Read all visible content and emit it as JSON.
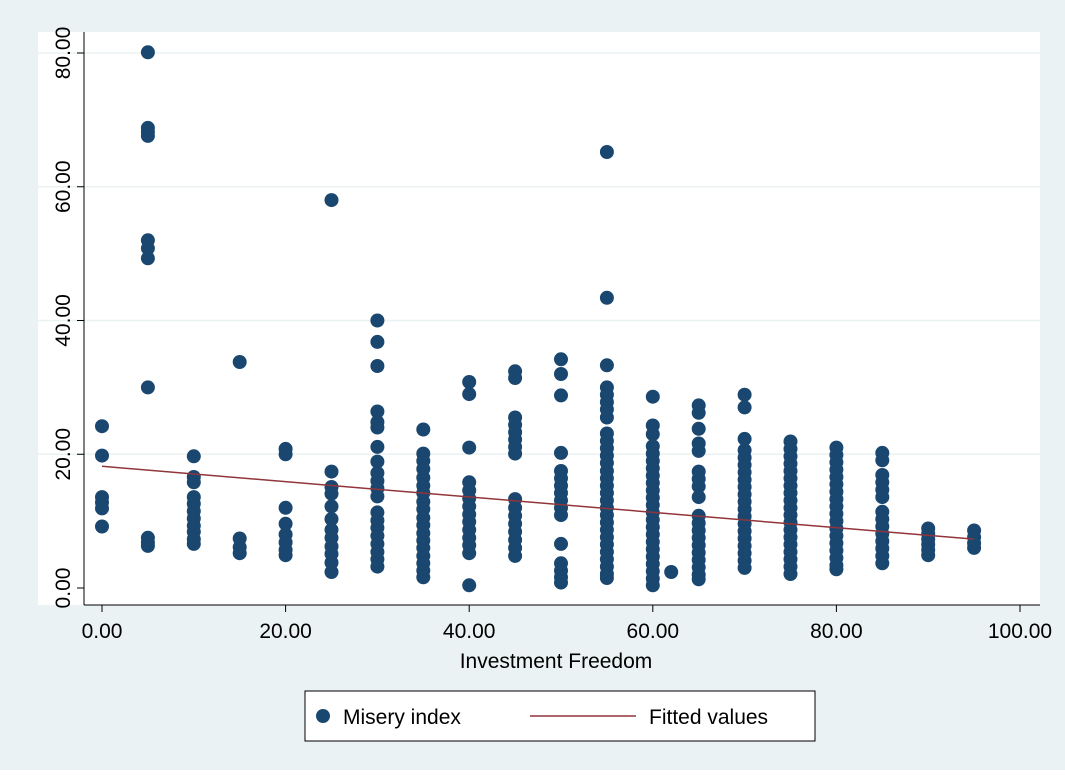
{
  "colors": {
    "graph_region": "#eaf2f3",
    "plot_region": "#ffffff",
    "gridline": "#eaf2f3",
    "axis": "#000000",
    "marker": "#1a476f",
    "fitted_line": "#90353b",
    "legend_border": "#000000"
  },
  "chart_data": {
    "type": "scatter",
    "title": "",
    "xlabel": "Investment Freedom",
    "ylabel": "",
    "xlim": [
      0,
      100
    ],
    "ylim": [
      0,
      80
    ],
    "xticks": [
      0,
      20,
      40,
      60,
      80,
      100
    ],
    "xtick_labels": [
      "0.00",
      "20.00",
      "40.00",
      "60.00",
      "80.00",
      "100.00"
    ],
    "yticks": [
      0,
      20,
      40,
      60,
      80
    ],
    "ytick_labels": [
      "0.00",
      "20.00",
      "40.00",
      "60.00",
      "80.00"
    ],
    "grid": "horizontal",
    "legend_position": "bottom",
    "series": [
      {
        "name": "Misery index",
        "type": "scatter",
        "points": [
          [
            0,
            24.2
          ],
          [
            0,
            19.8
          ],
          [
            0,
            13.6
          ],
          [
            0,
            12.8
          ],
          [
            0,
            11.9
          ],
          [
            0,
            9.2
          ],
          [
            5,
            80.1
          ],
          [
            5,
            68.8
          ],
          [
            5,
            68.2
          ],
          [
            5,
            67.6
          ],
          [
            5,
            52.0
          ],
          [
            5,
            50.8
          ],
          [
            5,
            49.3
          ],
          [
            5,
            30.0
          ],
          [
            5,
            7.5
          ],
          [
            5,
            6.8
          ],
          [
            5,
            6.3
          ],
          [
            10,
            19.7
          ],
          [
            10,
            16.6
          ],
          [
            10,
            15.8
          ],
          [
            10,
            13.6
          ],
          [
            10,
            12.6
          ],
          [
            10,
            11.5
          ],
          [
            10,
            10.4
          ],
          [
            10,
            9.3
          ],
          [
            10,
            8.4
          ],
          [
            10,
            7.3
          ],
          [
            10,
            6.6
          ],
          [
            15,
            33.8
          ],
          [
            15,
            7.4
          ],
          [
            15,
            6.1
          ],
          [
            15,
            5.2
          ],
          [
            20,
            20.8
          ],
          [
            20,
            20.0
          ],
          [
            20,
            12.0
          ],
          [
            20,
            9.6
          ],
          [
            20,
            8.0
          ],
          [
            20,
            6.8
          ],
          [
            20,
            5.7
          ],
          [
            20,
            4.9
          ],
          [
            25,
            58.0
          ],
          [
            25,
            17.4
          ],
          [
            25,
            15.1
          ],
          [
            25,
            14.1
          ],
          [
            25,
            12.2
          ],
          [
            25,
            10.3
          ],
          [
            25,
            8.7
          ],
          [
            25,
            7.5
          ],
          [
            25,
            6.2
          ],
          [
            25,
            5.1
          ],
          [
            25,
            3.8
          ],
          [
            25,
            2.4
          ],
          [
            30,
            40.0
          ],
          [
            30,
            36.8
          ],
          [
            30,
            33.2
          ],
          [
            30,
            26.4
          ],
          [
            30,
            24.8
          ],
          [
            30,
            24.0
          ],
          [
            30,
            21.1
          ],
          [
            30,
            18.9
          ],
          [
            30,
            17.2
          ],
          [
            30,
            16.0
          ],
          [
            30,
            14.9
          ],
          [
            30,
            13.7
          ],
          [
            30,
            11.3
          ],
          [
            30,
            10.1
          ],
          [
            30,
            9.0
          ],
          [
            30,
            7.8
          ],
          [
            30,
            6.6
          ],
          [
            30,
            5.4
          ],
          [
            30,
            4.3
          ],
          [
            30,
            3.2
          ],
          [
            35,
            23.7
          ],
          [
            35,
            20.1
          ],
          [
            35,
            19.0
          ],
          [
            35,
            17.8
          ],
          [
            35,
            16.5
          ],
          [
            35,
            15.3
          ],
          [
            35,
            14.2
          ],
          [
            35,
            12.9
          ],
          [
            35,
            11.8
          ],
          [
            35,
            10.5
          ],
          [
            35,
            9.4
          ],
          [
            35,
            8.2
          ],
          [
            35,
            7.1
          ],
          [
            35,
            6.0
          ],
          [
            35,
            4.8
          ],
          [
            35,
            3.7
          ],
          [
            35,
            2.6
          ],
          [
            35,
            1.6
          ],
          [
            40,
            30.8
          ],
          [
            40,
            29.0
          ],
          [
            40,
            21.0
          ],
          [
            40,
            15.8
          ],
          [
            40,
            14.6
          ],
          [
            40,
            13.4
          ],
          [
            40,
            12.2
          ],
          [
            40,
            11.0
          ],
          [
            40,
            9.9
          ],
          [
            40,
            8.7
          ],
          [
            40,
            7.5
          ],
          [
            40,
            6.4
          ],
          [
            40,
            5.2
          ],
          [
            40,
            0.4
          ],
          [
            45,
            32.4
          ],
          [
            45,
            31.4
          ],
          [
            45,
            25.5
          ],
          [
            45,
            24.4
          ],
          [
            45,
            23.3
          ],
          [
            45,
            22.2
          ],
          [
            45,
            21.1
          ],
          [
            45,
            20.1
          ],
          [
            45,
            13.3
          ],
          [
            45,
            12.0
          ],
          [
            45,
            10.8
          ],
          [
            45,
            9.6
          ],
          [
            45,
            8.4
          ],
          [
            45,
            7.2
          ],
          [
            45,
            6.0
          ],
          [
            45,
            4.8
          ],
          [
            50,
            34.2
          ],
          [
            50,
            32.0
          ],
          [
            50,
            28.8
          ],
          [
            50,
            20.2
          ],
          [
            50,
            17.5
          ],
          [
            50,
            16.4
          ],
          [
            50,
            15.3
          ],
          [
            50,
            14.2
          ],
          [
            50,
            13.1
          ],
          [
            50,
            12.0
          ],
          [
            50,
            10.9
          ],
          [
            50,
            6.6
          ],
          [
            50,
            3.7
          ],
          [
            50,
            2.6
          ],
          [
            50,
            1.6
          ],
          [
            50,
            0.8
          ],
          [
            55,
            65.2
          ],
          [
            55,
            43.4
          ],
          [
            55,
            33.3
          ],
          [
            55,
            30.0
          ],
          [
            55,
            28.9
          ],
          [
            55,
            27.8
          ],
          [
            55,
            26.7
          ],
          [
            55,
            25.5
          ],
          [
            55,
            23.1
          ],
          [
            55,
            22.0
          ],
          [
            55,
            20.9
          ],
          [
            55,
            19.8
          ],
          [
            55,
            18.7
          ],
          [
            55,
            17.5
          ],
          [
            55,
            16.4
          ],
          [
            55,
            15.3
          ],
          [
            55,
            14.2
          ],
          [
            55,
            13.1
          ],
          [
            55,
            12.0
          ],
          [
            55,
            10.9
          ],
          [
            55,
            9.8
          ],
          [
            55,
            8.7
          ],
          [
            55,
            7.6
          ],
          [
            55,
            6.5
          ],
          [
            55,
            5.4
          ],
          [
            55,
            4.3
          ],
          [
            55,
            3.2
          ],
          [
            55,
            2.1
          ],
          [
            55,
            1.5
          ],
          [
            60,
            28.6
          ],
          [
            60,
            24.3
          ],
          [
            60,
            23.0
          ],
          [
            60,
            21.2
          ],
          [
            60,
            20.1
          ],
          [
            60,
            19.0
          ],
          [
            60,
            17.9
          ],
          [
            60,
            16.8
          ],
          [
            60,
            15.7
          ],
          [
            60,
            14.6
          ],
          [
            60,
            13.5
          ],
          [
            60,
            12.4
          ],
          [
            60,
            11.3
          ],
          [
            60,
            10.2
          ],
          [
            60,
            9.1
          ],
          [
            60,
            8.0
          ],
          [
            60,
            6.9
          ],
          [
            60,
            5.8
          ],
          [
            60,
            4.7
          ],
          [
            60,
            3.6
          ],
          [
            60,
            2.5
          ],
          [
            60,
            1.4
          ],
          [
            60,
            0.4
          ],
          [
            62,
            2.4
          ],
          [
            65,
            27.3
          ],
          [
            65,
            26.2
          ],
          [
            65,
            23.8
          ],
          [
            65,
            21.6
          ],
          [
            65,
            20.5
          ],
          [
            65,
            17.4
          ],
          [
            65,
            16.3
          ],
          [
            65,
            15.2
          ],
          [
            65,
            13.6
          ],
          [
            65,
            10.8
          ],
          [
            65,
            9.7
          ],
          [
            65,
            8.6
          ],
          [
            65,
            7.5
          ],
          [
            65,
            6.4
          ],
          [
            65,
            5.3
          ],
          [
            65,
            4.2
          ],
          [
            65,
            3.1
          ],
          [
            65,
            2.0
          ],
          [
            65,
            1.3
          ],
          [
            70,
            28.9
          ],
          [
            70,
            27.0
          ],
          [
            70,
            22.3
          ],
          [
            70,
            20.6
          ],
          [
            70,
            19.5
          ],
          [
            70,
            18.4
          ],
          [
            70,
            17.3
          ],
          [
            70,
            16.2
          ],
          [
            70,
            15.1
          ],
          [
            70,
            14.0
          ],
          [
            70,
            12.9
          ],
          [
            70,
            11.8
          ],
          [
            70,
            10.7
          ],
          [
            70,
            9.6
          ],
          [
            70,
            8.5
          ],
          [
            70,
            7.4
          ],
          [
            70,
            6.3
          ],
          [
            70,
            5.2
          ],
          [
            70,
            4.1
          ],
          [
            70,
            3.0
          ],
          [
            75,
            21.9
          ],
          [
            75,
            20.8
          ],
          [
            75,
            19.7
          ],
          [
            75,
            18.6
          ],
          [
            75,
            17.5
          ],
          [
            75,
            16.4
          ],
          [
            75,
            15.3
          ],
          [
            75,
            14.2
          ],
          [
            75,
            13.1
          ],
          [
            75,
            12.0
          ],
          [
            75,
            10.9
          ],
          [
            75,
            9.8
          ],
          [
            75,
            8.7
          ],
          [
            75,
            7.6
          ],
          [
            75,
            6.5
          ],
          [
            75,
            5.4
          ],
          [
            75,
            4.3
          ],
          [
            75,
            3.2
          ],
          [
            75,
            2.1
          ],
          [
            80,
            21.0
          ],
          [
            80,
            19.9
          ],
          [
            80,
            18.8
          ],
          [
            80,
            17.7
          ],
          [
            80,
            16.6
          ],
          [
            80,
            15.5
          ],
          [
            80,
            14.4
          ],
          [
            80,
            13.3
          ],
          [
            80,
            12.2
          ],
          [
            80,
            11.1
          ],
          [
            80,
            10.0
          ],
          [
            80,
            8.9
          ],
          [
            80,
            7.8
          ],
          [
            80,
            6.7
          ],
          [
            80,
            5.6
          ],
          [
            80,
            4.5
          ],
          [
            80,
            3.4
          ],
          [
            80,
            2.8
          ],
          [
            85,
            20.2
          ],
          [
            85,
            19.1
          ],
          [
            85,
            16.9
          ],
          [
            85,
            15.8
          ],
          [
            85,
            14.7
          ],
          [
            85,
            13.6
          ],
          [
            85,
            11.4
          ],
          [
            85,
            10.3
          ],
          [
            85,
            9.2
          ],
          [
            85,
            8.1
          ],
          [
            85,
            7.0
          ],
          [
            85,
            5.9
          ],
          [
            85,
            4.8
          ],
          [
            85,
            3.7
          ],
          [
            90,
            8.9
          ],
          [
            90,
            8.1
          ],
          [
            90,
            7.3
          ],
          [
            90,
            6.5
          ],
          [
            90,
            5.7
          ],
          [
            90,
            4.9
          ],
          [
            95,
            8.6
          ],
          [
            95,
            7.6
          ],
          [
            95,
            6.7
          ],
          [
            95,
            6.0
          ]
        ]
      },
      {
        "name": "Fitted values",
        "type": "line",
        "points": [
          [
            0,
            18.2
          ],
          [
            95,
            7.3
          ]
        ]
      }
    ]
  }
}
